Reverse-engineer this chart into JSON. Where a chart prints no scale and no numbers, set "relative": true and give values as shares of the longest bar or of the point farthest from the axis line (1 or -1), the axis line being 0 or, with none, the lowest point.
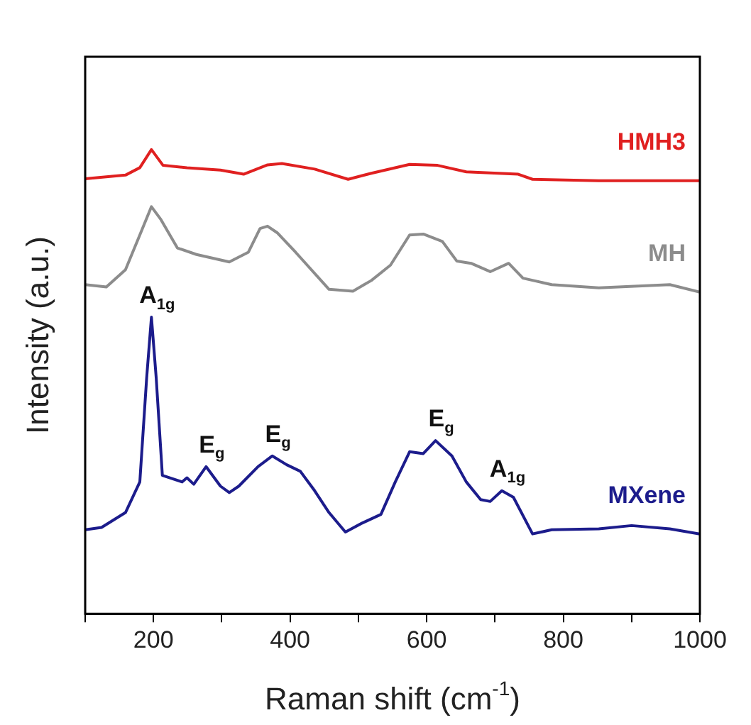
{
  "chart_data": {
    "type": "line",
    "relative": true,
    "xlabel": "Raman shift (cm$^{-1}$)",
    "ylabel": "Intensity (a.u.)",
    "legend": false,
    "grid": false,
    "marker": "none",
    "line_style": "solid",
    "xlim": [
      100,
      1000
    ],
    "xticks": [
      {
        "value": 100,
        "label": null
      },
      200,
      {
        "value": 300,
        "label": null
      },
      400,
      {
        "value": 500,
        "label": null
      },
      600,
      {
        "value": 700,
        "label": null
      },
      800,
      {
        "value": 900,
        "label": null
      },
      1000
    ],
    "series": [
      {
        "name": "HMH3",
        "color": "#e02020",
        "x": [
          100,
          159,
          180,
          197,
          214,
          249,
          298,
          332,
          367,
          388,
          436,
          485,
          519,
          575,
          616,
          658,
          734,
          755,
          852,
          1000
        ],
        "values": [
          0.937,
          0.945,
          0.961,
          1.0,
          0.966,
          0.961,
          0.956,
          0.947,
          0.967,
          0.97,
          0.958,
          0.936,
          0.949,
          0.968,
          0.966,
          0.952,
          0.947,
          0.936,
          0.933,
          0.933
        ]
      },
      {
        "name": "MH",
        "color": "#8c8c8c",
        "x": [
          100,
          131,
          159,
          180,
          197,
          211,
          235,
          263,
          311,
          339,
          356,
          367,
          381,
          408,
          457,
          492,
          519,
          547,
          575,
          595,
          623,
          644,
          665,
          693,
          720,
          741,
          783,
          852,
          956,
          1000
        ],
        "values": [
          0.709,
          0.704,
          0.741,
          0.816,
          0.877,
          0.849,
          0.788,
          0.774,
          0.758,
          0.779,
          0.83,
          0.835,
          0.821,
          0.779,
          0.699,
          0.695,
          0.718,
          0.751,
          0.816,
          0.818,
          0.802,
          0.76,
          0.755,
          0.737,
          0.755,
          0.723,
          0.709,
          0.702,
          0.709,
          0.693
        ]
      },
      {
        "name": "MXene",
        "color": "#1c1c8c",
        "x": [
          100,
          124,
          159,
          180,
          190,
          197,
          204,
          213,
          242,
          249,
          259,
          277,
          298,
          311,
          325,
          353,
          374,
          395,
          415,
          436,
          457,
          481,
          505,
          533,
          554,
          575,
          595,
          613,
          637,
          658,
          679,
          693,
          710,
          727,
          755,
          783,
          852,
          900,
          956,
          1000
        ],
        "values": [
          0.181,
          0.186,
          0.218,
          0.284,
          0.508,
          0.639,
          0.508,
          0.298,
          0.284,
          0.293,
          0.279,
          0.317,
          0.275,
          0.261,
          0.275,
          0.317,
          0.34,
          0.321,
          0.307,
          0.265,
          0.218,
          0.176,
          0.195,
          0.214,
          0.284,
          0.349,
          0.345,
          0.373,
          0.34,
          0.284,
          0.246,
          0.242,
          0.265,
          0.251,
          0.172,
          0.181,
          0.183,
          0.19,
          0.183,
          0.172
        ]
      }
    ],
    "annotations": [
      {
        "text": "A$_{1g}$",
        "x": 197,
        "y": 0.639
      },
      {
        "text": "E$_{g}$",
        "x": 277,
        "y": 0.317
      },
      {
        "text": "E$_{g}$",
        "x": 374,
        "y": 0.34
      },
      {
        "text": "E$_{g}$",
        "x": 613,
        "y": 0.373
      },
      {
        "text": "A$_{1g}$",
        "x": 710,
        "y": 0.265
      }
    ]
  }
}
